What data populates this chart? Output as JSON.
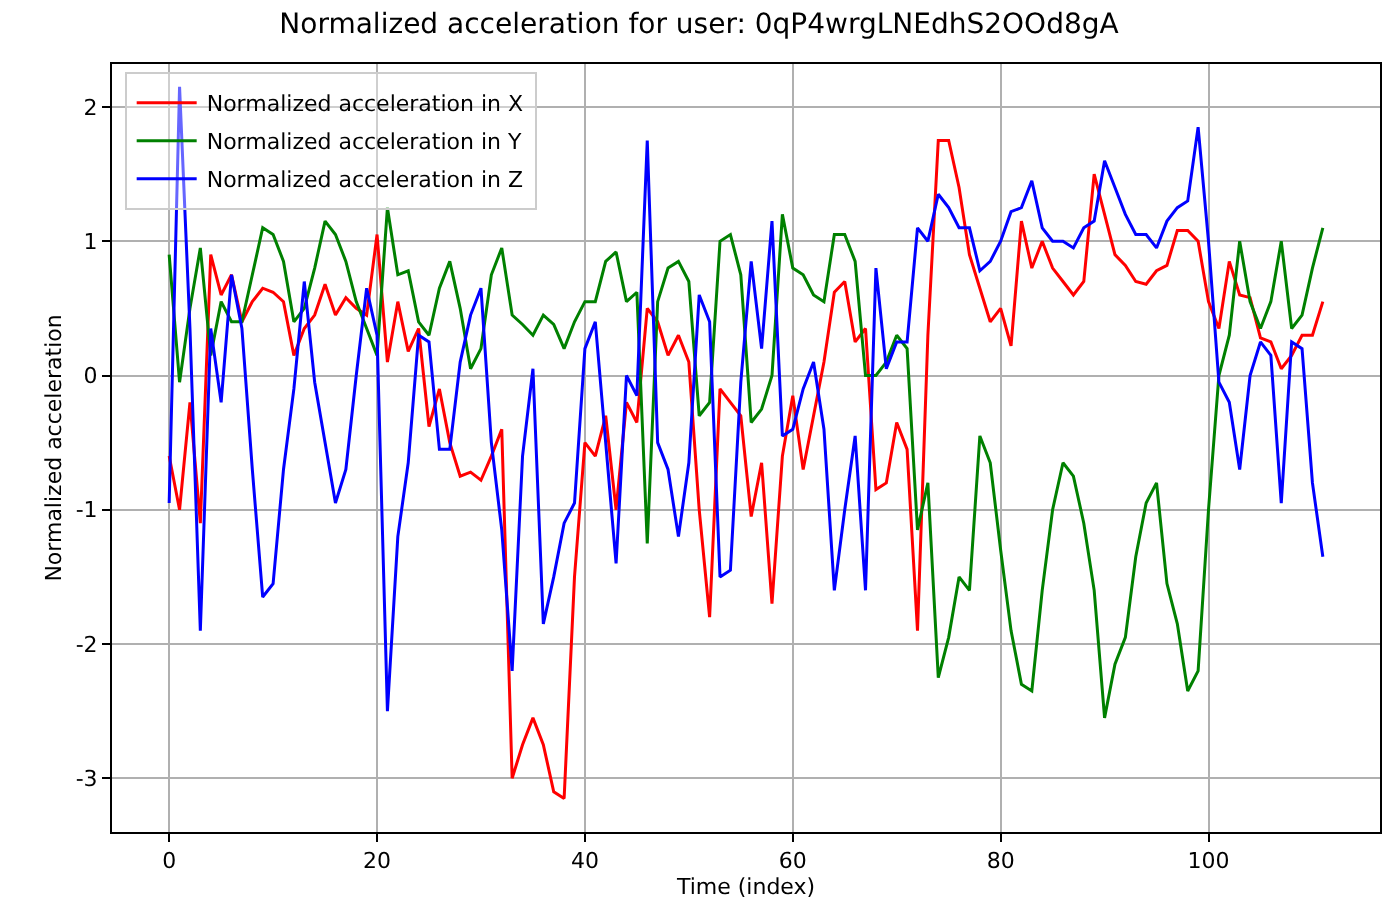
{
  "chart_data": {
    "type": "line",
    "title": "Normalized acceleration for user: 0qP4wrgLNEdhS2OOd8gA",
    "xlabel": "Time (index)",
    "ylabel": "Normalized acceleration",
    "x": [
      0,
      1,
      2,
      3,
      4,
      5,
      6,
      7,
      8,
      9,
      10,
      11,
      12,
      13,
      14,
      15,
      16,
      17,
      18,
      19,
      20,
      21,
      22,
      23,
      24,
      25,
      26,
      27,
      28,
      29,
      30,
      31,
      32,
      33,
      34,
      35,
      36,
      37,
      38,
      39,
      40,
      41,
      42,
      43,
      44,
      45,
      46,
      47,
      48,
      49,
      50,
      51,
      52,
      53,
      54,
      55,
      56,
      57,
      58,
      59,
      60,
      61,
      62,
      63,
      64,
      65,
      66,
      67,
      68,
      69,
      70,
      71,
      72,
      73,
      74,
      75,
      76,
      77,
      78,
      79,
      80,
      81,
      82,
      83,
      84,
      85,
      86,
      87,
      88,
      89,
      90,
      91,
      92,
      93,
      94,
      95,
      96,
      97,
      98,
      99,
      100,
      101,
      102,
      103,
      104,
      105,
      106,
      107,
      108,
      109,
      110,
      111
    ],
    "series": [
      {
        "name": "Normalized acceleration in X",
        "color": "#ff0000",
        "values": [
          -0.6,
          -1.0,
          -0.2,
          -1.1,
          0.9,
          0.6,
          0.75,
          0.4,
          0.55,
          0.65,
          0.62,
          0.55,
          0.15,
          0.35,
          0.45,
          0.68,
          0.45,
          0.58,
          0.5,
          0.45,
          1.05,
          0.1,
          0.55,
          0.18,
          0.35,
          -0.38,
          -0.1,
          -0.5,
          -0.75,
          -0.72,
          -0.78,
          -0.6,
          -0.4,
          -3.0,
          -2.75,
          -2.55,
          -2.75,
          -3.1,
          -3.15,
          -1.5,
          -0.5,
          -0.6,
          -0.3,
          -1.0,
          -0.2,
          -0.35,
          0.5,
          0.4,
          0.15,
          0.3,
          0.1,
          -1.0,
          -1.8,
          -0.1,
          -0.2,
          -0.3,
          -1.05,
          -0.65,
          -1.7,
          -0.6,
          -0.15,
          -0.7,
          -0.3,
          0.1,
          0.62,
          0.7,
          0.25,
          0.35,
          -0.85,
          -0.8,
          -0.35,
          -0.55,
          -1.9,
          0.3,
          1.75,
          1.75,
          1.4,
          0.9,
          0.65,
          0.4,
          0.5,
          0.22,
          1.15,
          0.8,
          1.0,
          0.8,
          0.7,
          0.6,
          0.7,
          1.5,
          1.2,
          0.9,
          0.82,
          0.7,
          0.68,
          0.78,
          0.82,
          1.08,
          1.08,
          1.0,
          0.55,
          0.35,
          0.85,
          0.6,
          0.58,
          0.28,
          0.25,
          0.05,
          0.15,
          0.3,
          0.3,
          0.55
        ]
      },
      {
        "name": "Normalized acceleration in Y",
        "color": "#008000",
        "values": [
          0.9,
          -0.05,
          0.5,
          0.95,
          0.15,
          0.55,
          0.4,
          0.4,
          0.75,
          1.1,
          1.05,
          0.85,
          0.4,
          0.5,
          0.8,
          1.15,
          1.05,
          0.85,
          0.55,
          0.35,
          0.15,
          1.25,
          0.75,
          0.78,
          0.4,
          0.3,
          0.65,
          0.85,
          0.5,
          0.05,
          0.2,
          0.75,
          0.95,
          0.45,
          0.38,
          0.3,
          0.45,
          0.38,
          0.2,
          0.4,
          0.55,
          0.55,
          0.85,
          0.92,
          0.55,
          0.62,
          -1.25,
          0.55,
          0.8,
          0.85,
          0.7,
          -0.3,
          -0.2,
          1.0,
          1.05,
          0.75,
          -0.35,
          -0.25,
          0.0,
          1.2,
          0.8,
          0.75,
          0.6,
          0.55,
          1.05,
          1.05,
          0.85,
          0.0,
          0.0,
          0.1,
          0.3,
          0.2,
          -1.15,
          -0.8,
          -2.25,
          -1.95,
          -1.5,
          -1.6,
          -0.45,
          -0.65,
          -1.3,
          -1.9,
          -2.3,
          -2.35,
          -1.6,
          -1.0,
          -0.65,
          -0.75,
          -1.1,
          -1.6,
          -2.55,
          -2.15,
          -1.95,
          -1.35,
          -0.95,
          -0.8,
          -1.55,
          -1.85,
          -2.35,
          -2.2,
          -1.0,
          0.0,
          0.3,
          1.0,
          0.55,
          0.35,
          0.55,
          1.0,
          0.35,
          0.45,
          0.8,
          1.1
        ]
      },
      {
        "name": "Normalized acceleration in Z",
        "color": "#0000ff",
        "values": [
          -0.95,
          2.15,
          0.35,
          -1.9,
          0.35,
          -0.2,
          0.75,
          0.35,
          -0.7,
          -1.65,
          -1.55,
          -0.7,
          -0.1,
          0.7,
          -0.05,
          -0.5,
          -0.95,
          -0.7,
          0.0,
          0.65,
          0.3,
          -2.5,
          -1.2,
          -0.65,
          0.3,
          0.25,
          -0.55,
          -0.55,
          0.1,
          0.45,
          0.65,
          -0.5,
          -1.15,
          -2.2,
          -0.6,
          0.05,
          -1.85,
          -1.5,
          -1.1,
          -0.95,
          0.2,
          0.4,
          -0.5,
          -1.4,
          0.0,
          -0.15,
          1.75,
          -0.5,
          -0.7,
          -1.2,
          -0.65,
          0.6,
          0.4,
          -1.5,
          -1.45,
          -0.05,
          0.85,
          0.2,
          1.15,
          -0.45,
          -0.4,
          -0.1,
          0.1,
          -0.4,
          -1.6,
          -1.0,
          -0.45,
          -1.6,
          0.8,
          0.05,
          0.25,
          0.25,
          1.1,
          1.0,
          1.35,
          1.25,
          1.1,
          1.1,
          0.78,
          0.85,
          1.0,
          1.22,
          1.25,
          1.45,
          1.1,
          1.0,
          1.0,
          0.95,
          1.1,
          1.15,
          1.6,
          1.4,
          1.2,
          1.05,
          1.05,
          0.95,
          1.15,
          1.25,
          1.3,
          1.85,
          1.0,
          -0.05,
          -0.2,
          -0.7,
          0.0,
          0.25,
          0.15,
          -0.95,
          0.25,
          0.2,
          -0.8,
          -1.35
        ]
      }
    ],
    "xlim": [
      -5.5,
      116.5
    ],
    "xticks": [
      0,
      20,
      40,
      60,
      80,
      100
    ],
    "ylim": [
      -3.4,
      2.32
    ],
    "yticks": [
      -3,
      -2,
      -1,
      0,
      1,
      2
    ],
    "grid": true,
    "legend": "top left",
    "marker": "none",
    "line_style": "solid"
  }
}
